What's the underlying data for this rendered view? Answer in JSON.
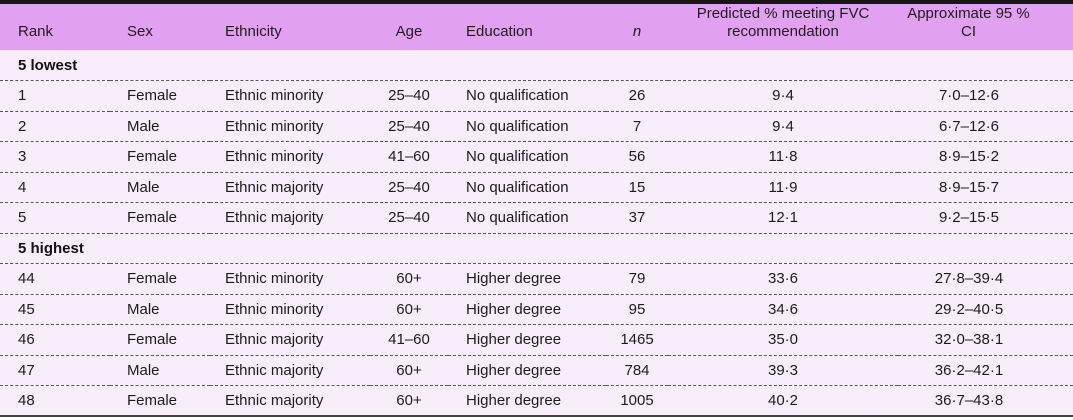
{
  "table": {
    "columns": [
      {
        "key": "rank",
        "label": "Rank"
      },
      {
        "key": "sex",
        "label": "Sex"
      },
      {
        "key": "ethnicity",
        "label": "Ethnicity"
      },
      {
        "key": "age",
        "label": "Age"
      },
      {
        "key": "education",
        "label": "Education"
      },
      {
        "key": "n",
        "label": "n"
      },
      {
        "key": "predicted-pct-fvc",
        "label": "Predicted % meeting FVC recommendation"
      },
      {
        "key": "approx-95-ci",
        "label": "Approximate 95 % CI"
      }
    ],
    "sections": [
      {
        "label": "5 lowest",
        "rows": [
          [
            "1",
            "Female",
            "Ethnic minority",
            "25–40",
            "No qualification",
            "26",
            "9·4",
            "7·0–12·6"
          ],
          [
            "2",
            "Male",
            "Ethnic minority",
            "25–40",
            "No qualification",
            "7",
            "9·4",
            "6·7–12·6"
          ],
          [
            "3",
            "Female",
            "Ethnic minority",
            "41–60",
            "No qualification",
            "56",
            "11·8",
            "8·9–15·2"
          ],
          [
            "4",
            "Male",
            "Ethnic majority",
            "25–40",
            "No qualification",
            "15",
            "11·9",
            "8·9–15·7"
          ],
          [
            "5",
            "Female",
            "Ethnic majority",
            "25–40",
            "No qualification",
            "37",
            "12·1",
            "9·2–15·5"
          ]
        ]
      },
      {
        "label": "5 highest",
        "rows": [
          [
            "44",
            "Female",
            "Ethnic minority",
            "60+",
            "Higher degree",
            "79",
            "33·6",
            "27·8–39·4"
          ],
          [
            "45",
            "Male",
            "Ethnic minority",
            "60+",
            "Higher degree",
            "95",
            "34·6",
            "29·2–40·5"
          ],
          [
            "46",
            "Female",
            "Ethnic majority",
            "41–60",
            "Higher degree",
            "1465",
            "35·0",
            "32·0–38·1"
          ],
          [
            "47",
            "Male",
            "Ethnic majority",
            "60+",
            "Higher degree",
            "784",
            "39·3",
            "36·2–42·1"
          ],
          [
            "48",
            "Female",
            "Ethnic majority",
            "60+",
            "Higher degree",
            "1005",
            "40·2",
            "36·7–43·8"
          ]
        ]
      }
    ]
  },
  "colors": {
    "header_bg": "#e1a0f0",
    "body_bg": "#f8edfa",
    "top_rule": "#1c1317",
    "bottom_rule": "#454045",
    "row_divider": "#5c5560",
    "text": "#1c1c1c"
  }
}
